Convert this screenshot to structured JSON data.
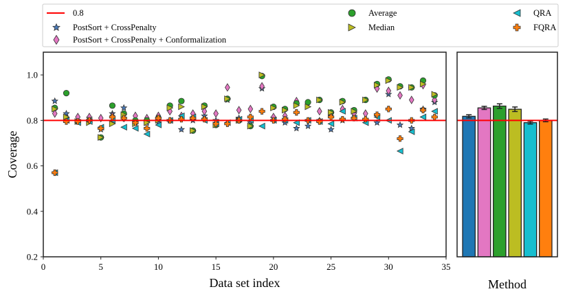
{
  "chart_data": [
    {
      "type": "scatter",
      "xlabel": "Data set index",
      "ylabel": "Coverage",
      "xlim": [
        0,
        35
      ],
      "ylim": [
        0.2,
        1.1
      ],
      "xticks": [
        "0",
        "5",
        "10",
        "15",
        "20",
        "25",
        "30",
        "35"
      ],
      "yticks": [
        "0.2",
        "0.4",
        "0.6",
        "0.8",
        "1.0"
      ],
      "reference_line": {
        "label": "0.8",
        "value": 0.8,
        "color": "#ff0000"
      },
      "x": [
        1,
        2,
        3,
        4,
        5,
        6,
        7,
        8,
        9,
        10,
        11,
        12,
        13,
        14,
        15,
        16,
        17,
        18,
        19,
        20,
        21,
        22,
        23,
        24,
        25,
        26,
        27,
        28,
        29,
        30,
        31,
        32,
        33,
        34
      ],
      "series": [
        {
          "name": "PostSort + CrossPenalty",
          "marker": "star",
          "color": "#4a7ab8",
          "values": [
            0.885,
            0.83,
            0.8,
            0.81,
            0.76,
            0.83,
            0.855,
            0.79,
            0.79,
            0.79,
            0.8,
            0.76,
            0.8,
            0.82,
            0.8,
            0.89,
            0.81,
            0.79,
            0.94,
            0.81,
            0.79,
            0.765,
            0.775,
            0.8,
            0.76,
            0.8,
            0.83,
            0.8,
            0.79,
            0.915,
            0.78,
            0.765,
            0.85,
            0.88
          ]
        },
        {
          "name": "PostSort + CrossPenalty + Conformalization",
          "marker": "diamond",
          "color": "#e377c2",
          "values": [
            0.83,
            0.81,
            0.815,
            0.815,
            0.81,
            0.82,
            0.81,
            0.82,
            0.81,
            0.82,
            0.84,
            0.82,
            0.83,
            0.84,
            0.83,
            0.945,
            0.845,
            0.85,
            0.95,
            0.815,
            0.82,
            0.885,
            0.875,
            0.84,
            0.82,
            0.85,
            0.83,
            0.83,
            0.94,
            0.93,
            0.91,
            0.89,
            0.955,
            0.89
          ]
        },
        {
          "name": "Average",
          "marker": "circle",
          "color": "#2ca02c",
          "values": [
            0.855,
            0.92,
            0.795,
            0.8,
            0.725,
            0.865,
            0.83,
            0.8,
            0.8,
            0.81,
            0.865,
            0.885,
            0.755,
            0.865,
            0.78,
            0.895,
            0.8,
            0.775,
            0.995,
            0.86,
            0.85,
            0.875,
            0.88,
            0.89,
            0.835,
            0.885,
            0.845,
            0.89,
            0.96,
            0.98,
            0.95,
            0.945,
            0.975,
            0.91
          ]
        },
        {
          "name": "Median",
          "marker": "triangle-right",
          "color": "#bcbd22",
          "values": [
            0.85,
            0.815,
            0.795,
            0.79,
            0.725,
            0.785,
            0.825,
            0.785,
            0.79,
            0.8,
            0.855,
            0.86,
            0.755,
            0.86,
            0.78,
            0.895,
            0.8,
            0.775,
            1.0,
            0.855,
            0.845,
            0.865,
            0.86,
            0.89,
            0.835,
            0.88,
            0.84,
            0.89,
            0.955,
            0.975,
            0.945,
            0.945,
            0.96,
            0.915
          ]
        },
        {
          "name": "QRA",
          "marker": "triangle-left",
          "color": "#17becf",
          "values": [
            0.57,
            0.8,
            0.79,
            0.795,
            0.77,
            0.8,
            0.77,
            0.765,
            0.74,
            0.78,
            0.8,
            0.82,
            0.815,
            0.8,
            0.785,
            0.79,
            0.805,
            0.8,
            0.775,
            0.8,
            0.8,
            0.79,
            0.8,
            0.795,
            0.785,
            0.84,
            0.81,
            0.79,
            0.815,
            0.8,
            0.665,
            0.75,
            0.815,
            0.84
          ]
        },
        {
          "name": "FQRA",
          "marker": "plus",
          "color": "#ff7f0e",
          "values": [
            0.57,
            0.795,
            0.795,
            0.8,
            0.765,
            0.815,
            0.81,
            0.79,
            0.765,
            0.81,
            0.8,
            0.805,
            0.81,
            0.805,
            0.785,
            0.785,
            0.8,
            0.815,
            0.84,
            0.8,
            0.805,
            0.835,
            0.8,
            0.795,
            0.815,
            0.805,
            0.81,
            0.805,
            0.825,
            0.85,
            0.72,
            0.8,
            0.845,
            0.815
          ]
        }
      ]
    },
    {
      "type": "bar",
      "xlabel": "Method",
      "ylim": [
        0.2,
        1.1
      ],
      "categories": [
        "PostSort + CrossPenalty",
        "PostSort + CrossPenalty + Conformalization",
        "Average",
        "Median",
        "QRA",
        "FQRA"
      ],
      "values": [
        0.818,
        0.855,
        0.863,
        0.849,
        0.79,
        0.8
      ],
      "errors": [
        0.007,
        0.007,
        0.01,
        0.01,
        0.006,
        0.006
      ],
      "colors": [
        "#1f77b4",
        "#e377c2",
        "#2ca02c",
        "#bcbd22",
        "#17becf",
        "#ff7f0e"
      ]
    }
  ]
}
